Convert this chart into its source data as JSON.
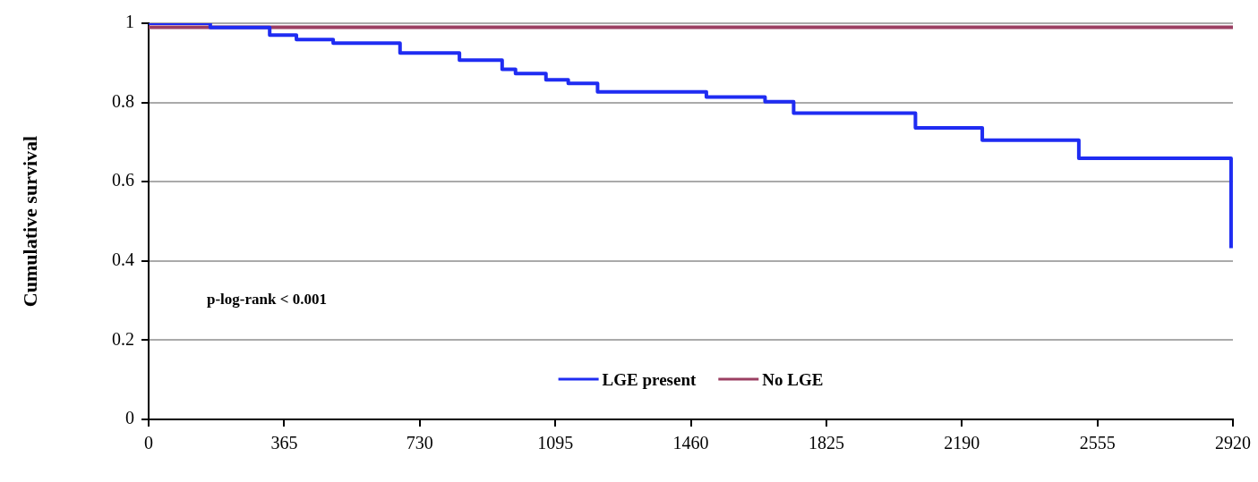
{
  "chart_data": {
    "type": "step",
    "ylabel": "Cumulative survival",
    "annotations": [
      "p-log-rank < 0.001"
    ],
    "xlim": [
      0,
      2920
    ],
    "xticks": [
      0,
      365,
      730,
      1095,
      1460,
      1825,
      2190,
      2555,
      2920
    ],
    "ylim": [
      0,
      1
    ],
    "yticks": [
      0,
      0.2,
      0.4,
      0.6,
      0.8,
      1
    ],
    "grid": "y",
    "legend": "bottom",
    "marker": "none",
    "series": [
      {
        "name": "LGE present",
        "color": "#1f2cf2",
        "x": [
          0,
          166,
          326,
          398,
          497,
          677,
          837,
          952,
          988,
          1070,
          1130,
          1209,
          1502,
          1660,
          1737,
          2065,
          2245,
          2505,
          2915
        ],
        "values": [
          1,
          0.989,
          0.97,
          0.959,
          0.95,
          0.925,
          0.907,
          0.884,
          0.873,
          0.857,
          0.848,
          0.827,
          0.814,
          0.802,
          0.773,
          0.736,
          0.705,
          0.659,
          0.432
        ]
      },
      {
        "name": "No LGE",
        "color": "#9b3f62",
        "x": [
          0,
          2920
        ],
        "values": [
          0.99,
          0.99
        ]
      }
    ]
  }
}
